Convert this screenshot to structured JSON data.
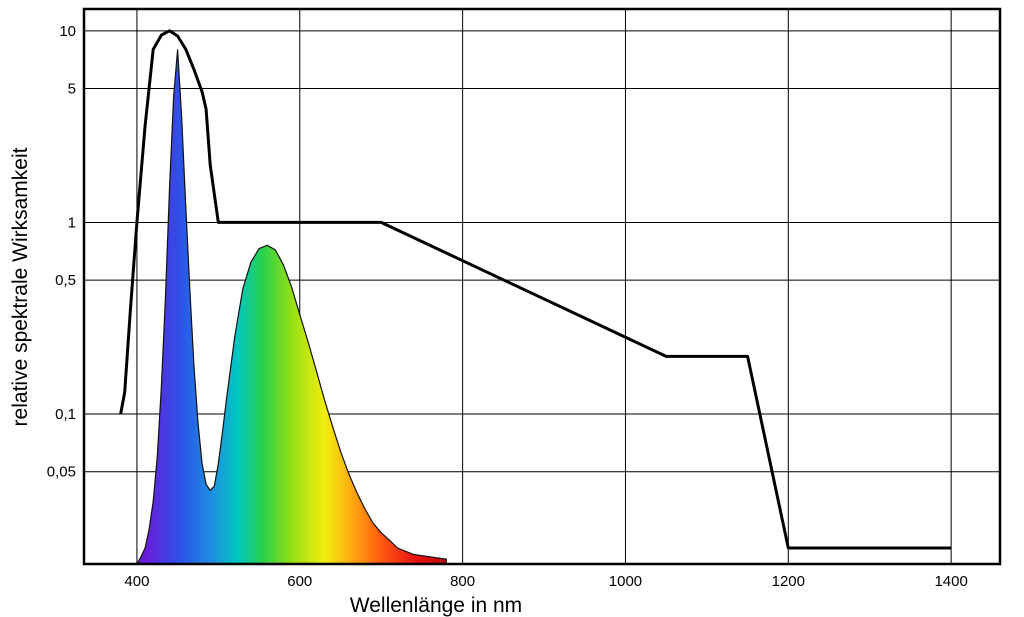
{
  "chart_data": {
    "type": "line",
    "title": "",
    "xlabel": "Wellenlänge in nm",
    "ylabel": "relative spektrale Wirksamkeit",
    "x_scale": "linear",
    "y_scale": "log",
    "xlim": [
      335,
      1460
    ],
    "ylim": [
      0.0165,
      13
    ],
    "x_ticks": [
      400,
      600,
      800,
      1000,
      1200,
      1400
    ],
    "y_ticks": [
      {
        "value": 10,
        "label": "10"
      },
      {
        "value": 5,
        "label": "5"
      },
      {
        "value": 1,
        "label": "1"
      },
      {
        "value": 0.5,
        "label": "0,5"
      },
      {
        "value": 0.1,
        "label": "0,1"
      },
      {
        "value": 0.05,
        "label": "0,05"
      }
    ],
    "grid": true,
    "series": [
      {
        "kind": "line",
        "color": "#000000",
        "x": [
          380,
          385,
          392,
          400,
          410,
          420,
          430,
          440,
          450,
          460,
          470,
          480,
          485,
          490,
          500,
          700,
          1050,
          1150,
          1200,
          1400
        ],
        "y": [
          0.1,
          0.13,
          0.35,
          1.0,
          3.2,
          8.0,
          9.5,
          10.0,
          9.4,
          8.0,
          6.3,
          4.8,
          3.9,
          2.0,
          1.0,
          1.0,
          0.2,
          0.2,
          0.02,
          0.02
        ]
      },
      {
        "kind": "spectrum-area",
        "x": [
          400,
          405,
          410,
          415,
          420,
          425,
          430,
          435,
          440,
          445,
          450,
          455,
          460,
          465,
          470,
          475,
          480,
          485,
          490,
          495,
          500,
          505,
          510,
          520,
          530,
          540,
          550,
          560,
          570,
          580,
          590,
          600,
          610,
          620,
          630,
          640,
          650,
          660,
          670,
          680,
          690,
          700,
          710,
          720,
          740,
          760,
          780
        ],
        "y": [
          0.0165,
          0.018,
          0.02,
          0.025,
          0.035,
          0.06,
          0.14,
          0.4,
          1.5,
          4.5,
          8.0,
          3.5,
          1.2,
          0.45,
          0.18,
          0.09,
          0.055,
          0.043,
          0.04,
          0.042,
          0.055,
          0.08,
          0.12,
          0.25,
          0.45,
          0.62,
          0.73,
          0.76,
          0.72,
          0.6,
          0.46,
          0.33,
          0.24,
          0.17,
          0.12,
          0.087,
          0.064,
          0.049,
          0.039,
          0.032,
          0.027,
          0.024,
          0.022,
          0.02,
          0.0185,
          0.018,
          0.0175
        ]
      }
    ]
  }
}
